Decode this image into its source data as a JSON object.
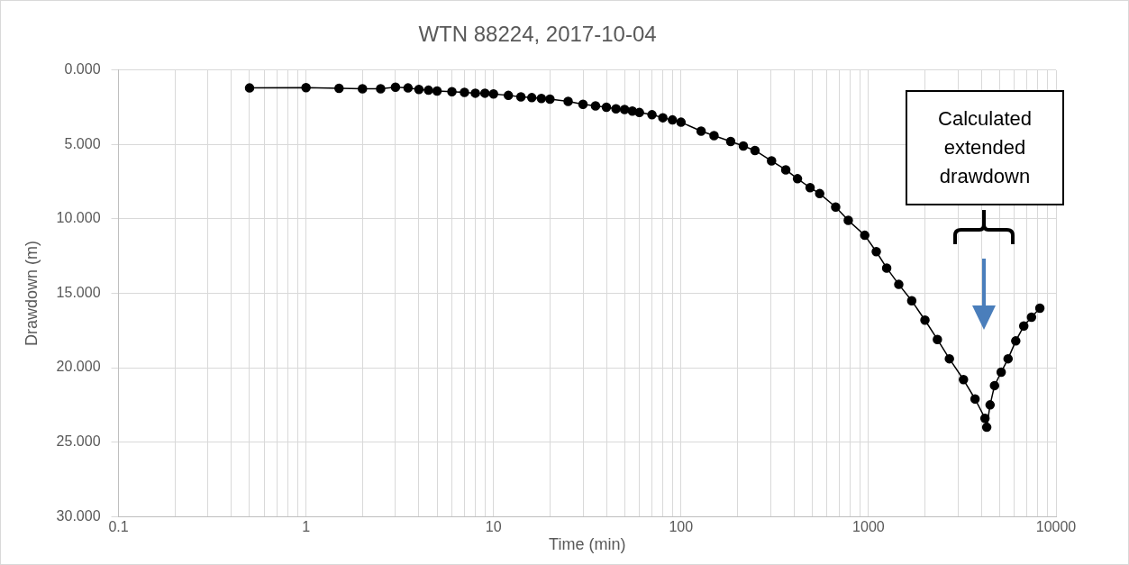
{
  "chart_data": {
    "type": "line",
    "title": "WTN 88224, 2017-10-04",
    "xlabel": "Time (min)",
    "ylabel": "Drawdown (m)",
    "log": "x",
    "grid": true,
    "marker": "circle",
    "line_style": "solid",
    "legend": false,
    "annotations": [
      "Calculated extended drawdown"
    ],
    "xlim": [
      0.1,
      10000
    ],
    "xticks": [
      0.1,
      {
        "value": 0.2,
        "label": null
      },
      {
        "value": 0.3,
        "label": null
      },
      {
        "value": 0.4,
        "label": null
      },
      {
        "value": 0.5,
        "label": null
      },
      {
        "value": 0.6,
        "label": null
      },
      {
        "value": 0.7,
        "label": null
      },
      {
        "value": 0.8,
        "label": null
      },
      {
        "value": 0.9,
        "label": null
      },
      1,
      {
        "value": 2,
        "label": null
      },
      {
        "value": 3,
        "label": null
      },
      {
        "value": 4,
        "label": null
      },
      {
        "value": 5,
        "label": null
      },
      {
        "value": 6,
        "label": null
      },
      {
        "value": 7,
        "label": null
      },
      {
        "value": 8,
        "label": null
      },
      {
        "value": 9,
        "label": null
      },
      10,
      {
        "value": 20,
        "label": null
      },
      {
        "value": 30,
        "label": null
      },
      {
        "value": 40,
        "label": null
      },
      {
        "value": 50,
        "label": null
      },
      {
        "value": 60,
        "label": null
      },
      {
        "value": 70,
        "label": null
      },
      {
        "value": 80,
        "label": null
      },
      {
        "value": 90,
        "label": null
      },
      100,
      {
        "value": 200,
        "label": null
      },
      {
        "value": 300,
        "label": null
      },
      {
        "value": 400,
        "label": null
      },
      {
        "value": 500,
        "label": null
      },
      {
        "value": 600,
        "label": null
      },
      {
        "value": 700,
        "label": null
      },
      {
        "value": 800,
        "label": null
      },
      {
        "value": 900,
        "label": null
      },
      1000,
      {
        "value": 2000,
        "label": null
      },
      {
        "value": 3000,
        "label": null
      },
      {
        "value": 4000,
        "label": null
      },
      {
        "value": 5000,
        "label": null
      },
      {
        "value": 6000,
        "label": null
      },
      {
        "value": 7000,
        "label": null
      },
      {
        "value": 8000,
        "label": null
      },
      {
        "value": 9000,
        "label": null
      },
      10000
    ],
    "ylim": [
      30,
      0
    ],
    "yticks": [
      {
        "value": 0,
        "label": "0.000"
      },
      {
        "value": 5,
        "label": "5.000"
      },
      {
        "value": 10,
        "label": "10.000"
      },
      {
        "value": 15,
        "label": "15.000"
      },
      {
        "value": 20,
        "label": "20.000"
      },
      {
        "value": 25,
        "label": "25.000"
      },
      {
        "value": 30,
        "label": "30.000"
      }
    ],
    "series": [
      {
        "color": "#000000",
        "x": [
          0.5,
          1,
          1.5,
          2,
          2.5,
          3,
          3.5,
          4,
          4.5,
          5,
          6,
          7,
          8,
          9,
          10,
          12,
          14,
          16,
          18,
          20,
          25,
          30,
          35,
          40,
          45,
          50,
          55,
          60,
          70,
          80,
          90,
          100,
          128,
          150,
          184,
          215,
          248,
          304,
          362,
          418,
          488,
          549,
          668,
          780,
          955,
          1100,
          1250,
          1450,
          1700,
          2000,
          2330,
          2700,
          3210,
          3700,
          4180,
          4270,
          4450,
          4700,
          5100,
          5550,
          6100,
          6730,
          7400,
          8200
        ],
        "values": [
          1.2,
          1.18,
          1.22,
          1.25,
          1.25,
          1.15,
          1.2,
          1.3,
          1.35,
          1.4,
          1.45,
          1.5,
          1.55,
          1.55,
          1.6,
          1.7,
          1.8,
          1.85,
          1.9,
          1.95,
          2.1,
          2.3,
          2.4,
          2.5,
          2.6,
          2.65,
          2.75,
          2.85,
          3.0,
          3.2,
          3.35,
          3.5,
          4.1,
          4.4,
          4.8,
          5.1,
          5.4,
          6.1,
          6.7,
          7.3,
          7.9,
          8.3,
          9.2,
          10.1,
          11.1,
          12.2,
          13.3,
          14.4,
          15.5,
          16.8,
          18.1,
          19.4,
          20.8,
          22.1,
          23.4,
          24.0,
          22.5,
          21.2,
          20.3,
          19.4,
          18.2,
          17.2,
          16.6,
          16.0
        ]
      }
    ]
  }
}
